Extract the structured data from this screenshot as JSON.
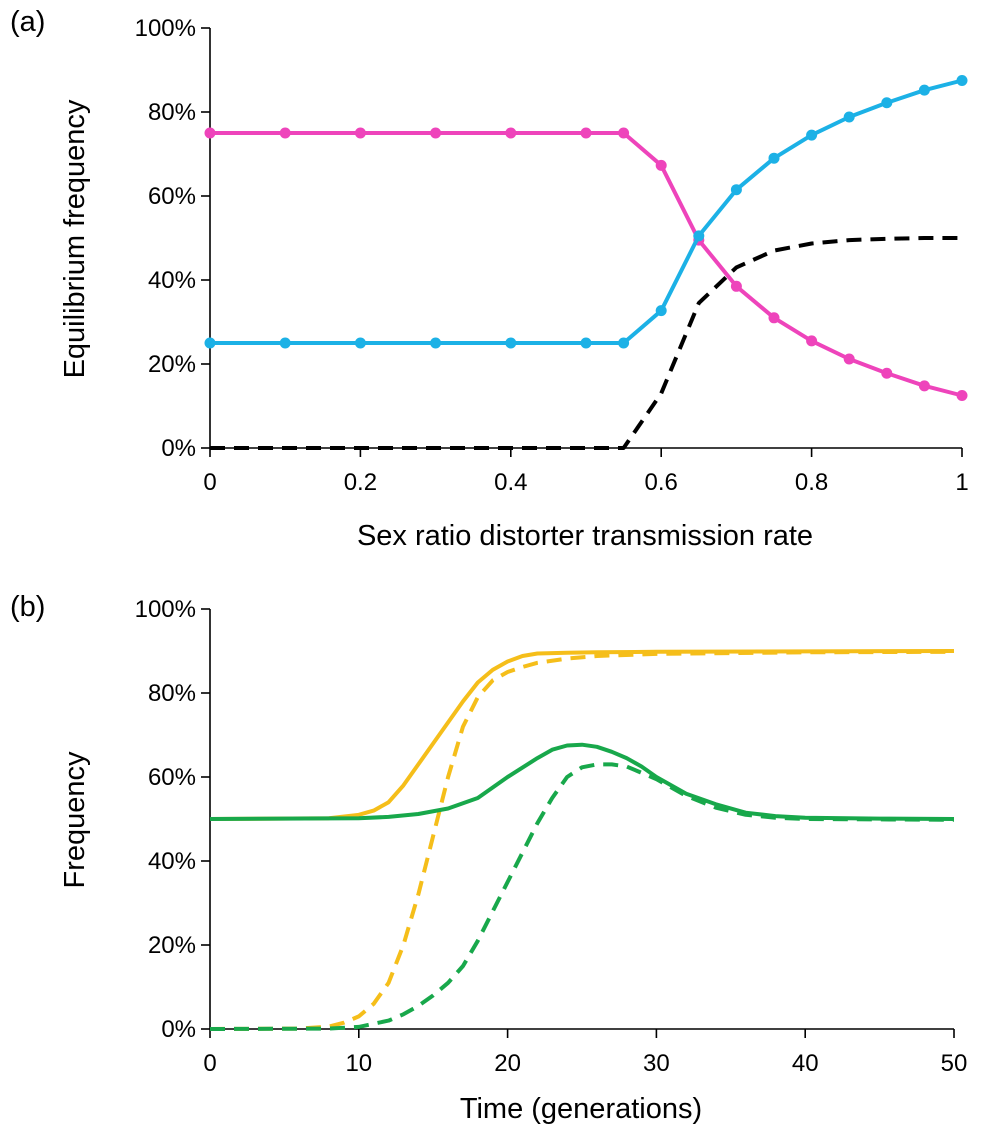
{
  "chart_data": [
    {
      "type": "line",
      "panel_label": "(a)",
      "xlabel": "Sex ratio distorter transmission rate",
      "ylabel": "Equilibrium frequency",
      "xlim": [
        0,
        1
      ],
      "ylim": [
        0,
        1
      ],
      "x_ticks": [
        0,
        0.2,
        0.4,
        0.6,
        0.8,
        1
      ],
      "x_tick_labels": [
        "0",
        "0.2",
        "0.4",
        "0.6",
        "0.8",
        "1"
      ],
      "y_ticks": [
        0,
        0.2,
        0.4,
        0.6,
        0.8,
        1
      ],
      "y_tick_labels": [
        "0%",
        "20%",
        "40%",
        "60%",
        "80%",
        "100%"
      ],
      "grid": false,
      "legend": "none",
      "series": [
        {
          "color": "#EE44BB",
          "style": "solid",
          "markers": true,
          "x": [
            0,
            0.1,
            0.2,
            0.3,
            0.4,
            0.5,
            0.55,
            0.6,
            0.65,
            0.7,
            0.75,
            0.8,
            0.85,
            0.9,
            0.95,
            1
          ],
          "y": [
            0.75,
            0.75,
            0.75,
            0.75,
            0.75,
            0.75,
            0.75,
            0.673,
            0.495,
            0.385,
            0.31,
            0.255,
            0.212,
            0.178,
            0.148,
            0.125
          ]
        },
        {
          "color": "#1CB1E6",
          "style": "solid",
          "markers": true,
          "x": [
            0,
            0.1,
            0.2,
            0.3,
            0.4,
            0.5,
            0.55,
            0.6,
            0.65,
            0.7,
            0.75,
            0.8,
            0.85,
            0.9,
            0.95,
            1
          ],
          "y": [
            0.25,
            0.25,
            0.25,
            0.25,
            0.25,
            0.25,
            0.25,
            0.327,
            0.505,
            0.615,
            0.69,
            0.745,
            0.788,
            0.822,
            0.852,
            0.875
          ]
        },
        {
          "color": "#000000",
          "style": "dashed",
          "markers": false,
          "x": [
            0,
            0.55,
            0.6,
            0.65,
            0.7,
            0.75,
            0.8,
            0.85,
            0.9,
            0.95,
            1
          ],
          "y": [
            0,
            0,
            0.13,
            0.345,
            0.43,
            0.47,
            0.487,
            0.495,
            0.498,
            0.5,
            0.5
          ]
        }
      ]
    },
    {
      "type": "line",
      "panel_label": "(b)",
      "xlabel": "Time (generations)",
      "ylabel": "Frequency",
      "xlim": [
        0,
        50
      ],
      "ylim": [
        0,
        1
      ],
      "x_ticks": [
        0,
        10,
        20,
        30,
        40,
        50
      ],
      "x_tick_labels": [
        "0",
        "10",
        "20",
        "30",
        "40",
        "50"
      ],
      "y_ticks": [
        0,
        0.2,
        0.4,
        0.6,
        0.8,
        1
      ],
      "y_tick_labels": [
        "0%",
        "20%",
        "40%",
        "60%",
        "80%",
        "100%"
      ],
      "grid": false,
      "legend": "none",
      "series": [
        {
          "color": "#F5BE1A",
          "style": "solid",
          "x": [
            0,
            8,
            10,
            11,
            12,
            13,
            14,
            15,
            16,
            17,
            18,
            19,
            20,
            21,
            22,
            24,
            26,
            30,
            40,
            50
          ],
          "y": [
            0.5,
            0.502,
            0.51,
            0.52,
            0.54,
            0.58,
            0.63,
            0.68,
            0.73,
            0.78,
            0.825,
            0.855,
            0.875,
            0.888,
            0.894,
            0.896,
            0.897,
            0.898,
            0.899,
            0.9
          ]
        },
        {
          "color": "#F5BE1A",
          "style": "dashed",
          "x": [
            0,
            6,
            8,
            9,
            10,
            11,
            12,
            13,
            14,
            15,
            16,
            17,
            18,
            19,
            20,
            21,
            22,
            24,
            26,
            30,
            40,
            50
          ],
          "y": [
            0,
            0.001,
            0.006,
            0.015,
            0.03,
            0.06,
            0.11,
            0.2,
            0.32,
            0.46,
            0.6,
            0.72,
            0.79,
            0.83,
            0.85,
            0.862,
            0.872,
            0.882,
            0.888,
            0.893,
            0.897,
            0.898
          ]
        },
        {
          "color": "#18A84B",
          "style": "solid",
          "x": [
            0,
            10,
            12,
            14,
            16,
            18,
            20,
            22,
            23,
            24,
            25,
            26,
            27,
            28,
            29,
            30,
            32,
            34,
            36,
            38,
            40,
            45,
            50
          ],
          "y": [
            0.5,
            0.502,
            0.505,
            0.512,
            0.525,
            0.55,
            0.6,
            0.645,
            0.665,
            0.675,
            0.677,
            0.672,
            0.66,
            0.645,
            0.625,
            0.6,
            0.56,
            0.535,
            0.515,
            0.507,
            0.503,
            0.501,
            0.5
          ]
        },
        {
          "color": "#18A84B",
          "style": "dashed",
          "x": [
            0,
            8,
            10,
            12,
            13,
            14,
            15,
            16,
            17,
            18,
            19,
            20,
            21,
            22,
            23,
            24,
            25,
            26,
            27,
            28,
            30,
            32,
            34,
            36,
            38,
            40,
            45,
            50
          ],
          "y": [
            0,
            0.001,
            0.005,
            0.02,
            0.035,
            0.055,
            0.08,
            0.11,
            0.15,
            0.21,
            0.28,
            0.35,
            0.42,
            0.49,
            0.55,
            0.6,
            0.623,
            0.63,
            0.63,
            0.625,
            0.595,
            0.555,
            0.527,
            0.51,
            0.503,
            0.5,
            0.499,
            0.498
          ]
        }
      ]
    }
  ]
}
